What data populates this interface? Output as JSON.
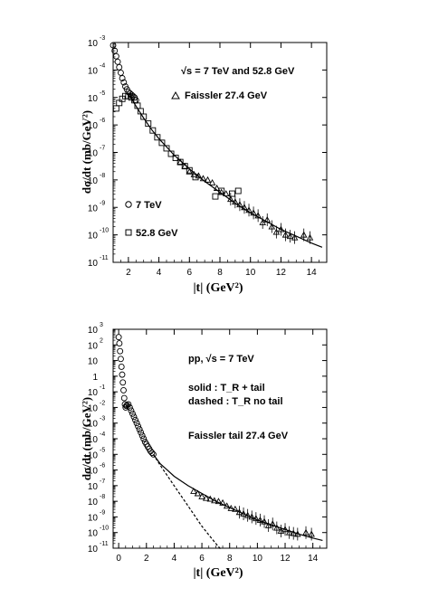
{
  "chart_data": [
    {
      "type": "scatter",
      "xlabel": "|t| (GeV²)",
      "ylabel": "dσ/dt (mb/GeV²)",
      "xlim": [
        1,
        15
      ],
      "ylim_log10": [
        -11,
        -3
      ],
      "log_y": true,
      "xticks": [
        "2",
        "4",
        "6",
        "8",
        "10",
        "12",
        "14"
      ],
      "yticks": [
        {
          "base": "10",
          "exp": "-3"
        },
        {
          "base": "10",
          "exp": "-4"
        },
        {
          "base": "10",
          "exp": "-5"
        },
        {
          "base": "10",
          "exp": "-6"
        },
        {
          "base": "10",
          "exp": "-7"
        },
        {
          "base": "10",
          "exp": "-8"
        },
        {
          "base": "10",
          "exp": "-9"
        },
        {
          "base": "10",
          "exp": "-10"
        },
        {
          "base": "10",
          "exp": "-11"
        }
      ],
      "annotations": [
        "√s = 7 TeV and 52.8 GeV"
      ],
      "legend": [
        {
          "marker": "triangle",
          "label": "Faissler  27.4 GeV"
        },
        {
          "marker": "circle",
          "label": "7 TeV"
        },
        {
          "marker": "square",
          "label": "52.8 GeV"
        }
      ],
      "series": [
        {
          "name": "7 TeV",
          "marker": "circle",
          "x": [
            1.0,
            1.1,
            1.2,
            1.3,
            1.4,
            1.5,
            1.6,
            1.7,
            1.8,
            1.9,
            2.0,
            2.1,
            2.2,
            2.3,
            2.4,
            2.5
          ],
          "log10y": [
            -3.1,
            -3.3,
            -3.5,
            -3.7,
            -3.9,
            -4.1,
            -4.3,
            -4.45,
            -4.6,
            -4.7,
            -4.8,
            -4.85,
            -4.9,
            -4.95,
            -5.0,
            -5.1
          ]
        },
        {
          "name": "52.8 GeV",
          "marker": "square",
          "x": [
            1.2,
            1.4,
            1.6,
            1.8,
            2.0,
            2.2,
            2.4,
            2.6,
            2.8,
            3.0,
            3.3,
            3.6,
            3.9,
            4.2,
            4.5,
            4.8,
            5.1,
            5.4,
            5.7,
            6.0,
            6.4,
            7.7,
            8.1,
            8.8,
            9.2
          ],
          "log10y": [
            -5.4,
            -5.2,
            -5.05,
            -4.95,
            -4.95,
            -5.0,
            -5.1,
            -5.3,
            -5.5,
            -5.7,
            -5.95,
            -6.2,
            -6.45,
            -6.65,
            -6.85,
            -7.05,
            -7.2,
            -7.35,
            -7.5,
            -7.65,
            -7.9,
            -8.6,
            -8.4,
            -8.5,
            -8.4
          ]
        },
        {
          "name": "Faissler  27.4 GeV",
          "marker": "triangle",
          "x": [
            5.4,
            5.7,
            6.0,
            6.3,
            6.6,
            6.9,
            7.2,
            7.5,
            7.8,
            8.1,
            8.4,
            8.7,
            9.0,
            9.3,
            9.6,
            9.9,
            10.2,
            10.5,
            10.8,
            11.1,
            11.4,
            11.7,
            12.0,
            12.3,
            12.6,
            12.9,
            13.5,
            13.9
          ],
          "log10y": [
            -7.35,
            -7.5,
            -7.7,
            -7.8,
            -7.85,
            -7.95,
            -8.0,
            -8.1,
            -8.3,
            -8.45,
            -8.5,
            -8.7,
            -8.8,
            -8.9,
            -9.0,
            -9.1,
            -9.2,
            -9.3,
            -9.55,
            -9.45,
            -9.7,
            -9.9,
            -9.8,
            -10.0,
            -10.05,
            -10.1,
            -10.0,
            -10.1
          ]
        }
      ],
      "curve": {
        "style": "solid",
        "x": [
          1.9,
          2.2,
          2.6,
          3.0,
          3.5,
          4.0,
          4.5,
          5.0,
          6.0,
          7.0,
          8.0,
          9.0,
          10.0,
          11.0,
          12.0,
          13.0,
          14.0,
          14.7
        ],
        "log10y": [
          -4.85,
          -5.05,
          -5.4,
          -5.75,
          -6.15,
          -6.5,
          -6.8,
          -7.1,
          -7.6,
          -8.05,
          -8.45,
          -8.85,
          -9.2,
          -9.5,
          -9.8,
          -10.05,
          -10.3,
          -10.45
        ]
      }
    },
    {
      "type": "scatter",
      "xlabel": "|t| (GeV²)",
      "ylabel": "dσ/dt (mb/GeV²)",
      "xlim": [
        -0.4,
        15
      ],
      "ylim_log10": [
        -11,
        3
      ],
      "log_y": true,
      "xticks": [
        "0",
        "2",
        "4",
        "6",
        "8",
        "10",
        "12",
        "14"
      ],
      "yticks": [
        {
          "base": "10",
          "exp": "3"
        },
        {
          "base": "10",
          "exp": "2"
        },
        {
          "base": "10",
          "exp": ""
        },
        {
          "base": "1",
          "exp": ""
        },
        {
          "base": "10",
          "exp": "-1"
        },
        {
          "base": "10",
          "exp": "-2"
        },
        {
          "base": "10",
          "exp": "-3"
        },
        {
          "base": "10",
          "exp": "-4"
        },
        {
          "base": "10",
          "exp": "-5"
        },
        {
          "base": "10",
          "exp": "-6"
        },
        {
          "base": "10",
          "exp": "-7"
        },
        {
          "base": "10",
          "exp": "-8"
        },
        {
          "base": "10",
          "exp": "-9"
        },
        {
          "base": "10",
          "exp": "-10"
        },
        {
          "base": "10",
          "exp": "-11"
        }
      ],
      "annotations": [
        "pp,   √s = 7 TeV",
        "solid : T_R + tail",
        "dashed : T_R no tail",
        "Faissler tail 27.4 GeV"
      ],
      "series": [
        {
          "name": "7 TeV",
          "marker": "circle",
          "x": [
            0.0,
            0.05,
            0.1,
            0.15,
            0.2,
            0.25,
            0.3,
            0.35,
            0.4,
            0.45,
            0.5,
            0.55,
            0.6,
            0.7,
            0.8,
            0.9,
            1.0,
            1.1,
            1.2,
            1.3,
            1.4,
            1.5,
            1.6,
            1.7,
            1.8,
            1.9,
            2.0,
            2.1,
            2.2,
            2.3,
            2.4,
            2.5
          ],
          "log10y": [
            2.5,
            2.1,
            1.6,
            1.1,
            0.6,
            0.1,
            -0.4,
            -0.9,
            -1.4,
            -1.8,
            -2.0,
            -1.9,
            -1.85,
            -1.8,
            -2.0,
            -2.2,
            -2.4,
            -2.6,
            -2.8,
            -3.0,
            -3.2,
            -3.4,
            -3.6,
            -3.8,
            -4.0,
            -4.2,
            -4.35,
            -4.5,
            -4.65,
            -4.8,
            -4.9,
            -5.0
          ]
        },
        {
          "name": "Faissler tail 27.4 GeV",
          "marker": "triangle",
          "x": [
            5.4,
            5.7,
            6.0,
            6.3,
            6.6,
            6.9,
            7.2,
            7.5,
            7.8,
            8.1,
            8.4,
            8.7,
            9.0,
            9.3,
            9.6,
            9.9,
            10.2,
            10.5,
            10.8,
            11.1,
            11.4,
            11.7,
            12.0,
            12.3,
            12.6,
            12.9,
            13.5,
            13.9
          ],
          "log10y": [
            -7.35,
            -7.5,
            -7.7,
            -7.8,
            -7.85,
            -7.95,
            -8.0,
            -8.1,
            -8.3,
            -8.45,
            -8.5,
            -8.7,
            -8.8,
            -8.9,
            -9.0,
            -9.1,
            -9.2,
            -9.3,
            -9.55,
            -9.45,
            -9.7,
            -9.9,
            -9.8,
            -10.0,
            -10.05,
            -10.1,
            -10.0,
            -10.1
          ]
        }
      ],
      "curves": [
        {
          "style": "solid",
          "x": [
            2.5,
            3.0,
            3.5,
            4.0,
            5.0,
            6.0,
            7.0,
            8.0,
            9.0,
            10.0,
            11.0,
            12.0,
            13.0,
            14.0,
            14.7
          ],
          "log10y": [
            -5.0,
            -5.6,
            -6.0,
            -6.4,
            -7.0,
            -7.5,
            -8.0,
            -8.4,
            -8.8,
            -9.2,
            -9.5,
            -9.8,
            -10.1,
            -10.35,
            -10.5
          ]
        },
        {
          "style": "dashed",
          "x": [
            2.5,
            3.0,
            4.0,
            5.0,
            6.0,
            7.0,
            7.4
          ],
          "log10y": [
            -5.0,
            -5.7,
            -7.0,
            -8.3,
            -9.6,
            -10.7,
            -11.1
          ]
        }
      ]
    }
  ]
}
